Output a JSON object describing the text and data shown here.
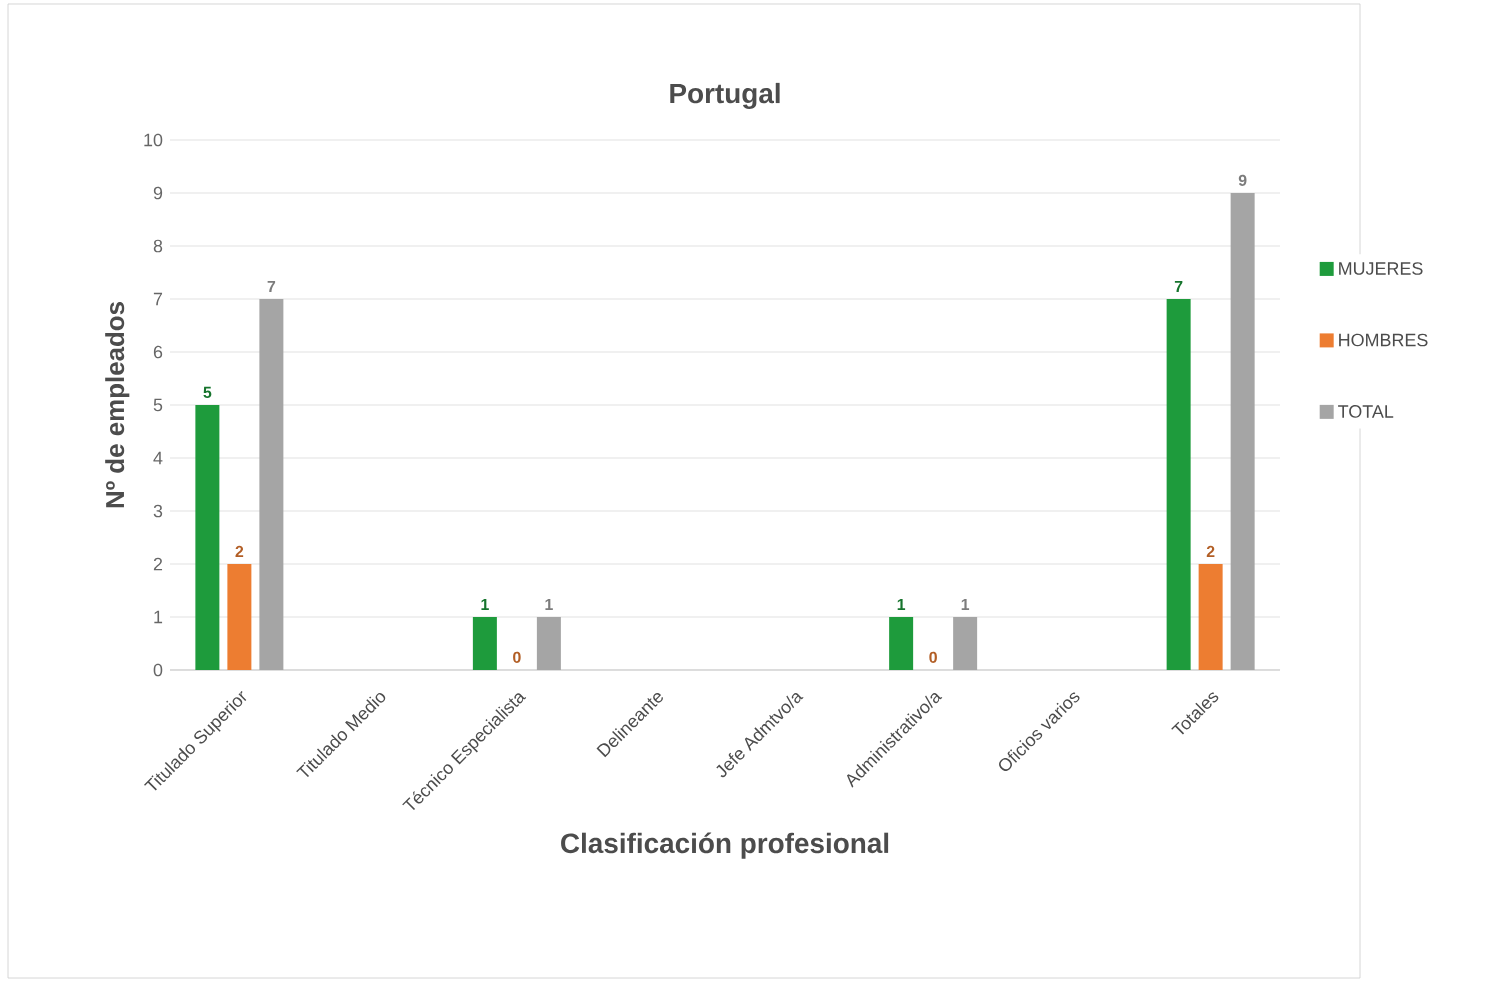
{
  "chart_data": {
    "type": "bar",
    "title": "Portugal",
    "xlabel": "Clasificación profesional",
    "ylabel": "Nº de empleados",
    "categories": [
      "Titulado Superior",
      "Titulado Medio",
      "Técnico Especialista",
      "Delineante",
      "Jefe Admtvo/a",
      "Administrativo/a",
      "Oficios varios",
      "Totales"
    ],
    "series": [
      {
        "name": "MUJERES",
        "color": "#1e9b3c",
        "values": [
          5,
          null,
          1,
          null,
          null,
          1,
          null,
          7
        ]
      },
      {
        "name": "HOMBRES",
        "color": "#ed7d31",
        "values": [
          2,
          null,
          0,
          null,
          null,
          0,
          null,
          2
        ]
      },
      {
        "name": "TOTAL",
        "color": "#a5a5a5",
        "values": [
          7,
          null,
          1,
          null,
          null,
          1,
          null,
          9
        ]
      }
    ],
    "ylim": [
      0,
      10
    ],
    "yticks": [
      0,
      1,
      2,
      3,
      4,
      5,
      6,
      7,
      8,
      9,
      10
    ],
    "grid": "y",
    "legend": "right",
    "data_labels": true
  }
}
